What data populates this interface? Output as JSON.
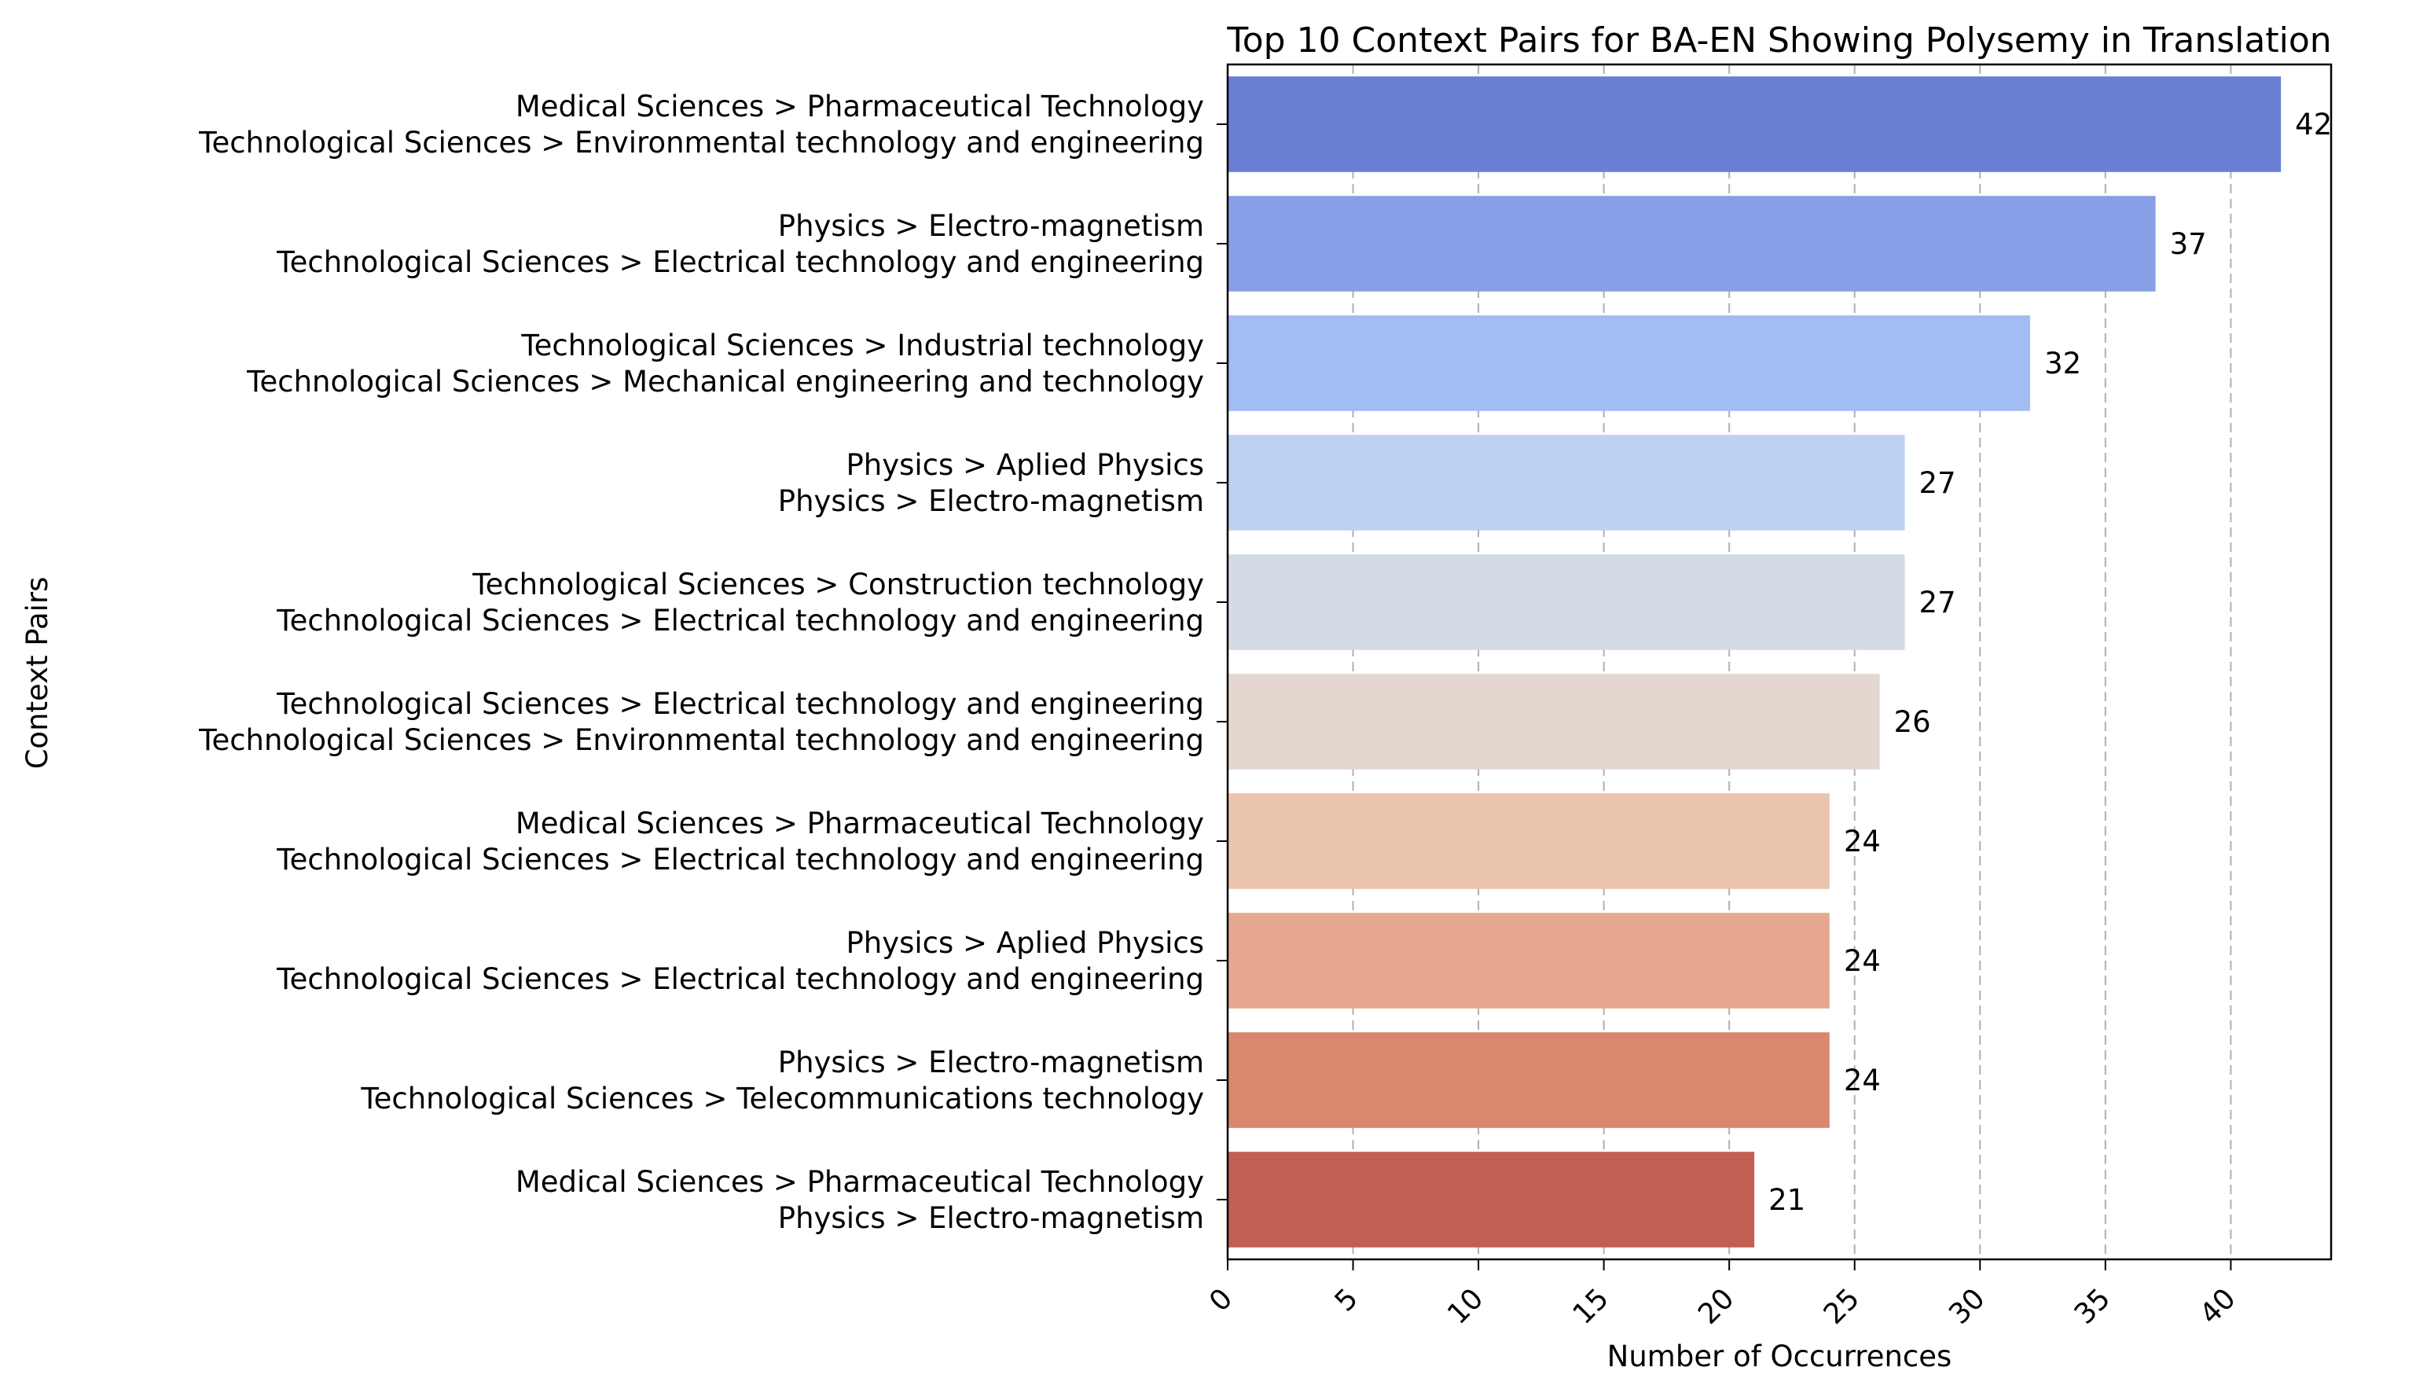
{
  "chart_data": {
    "type": "bar",
    "orientation": "horizontal",
    "title": "Top 10 Context Pairs for BA-EN Showing Polysemy in Translation",
    "xlabel": "Number of Occurrences",
    "ylabel": "Context Pairs",
    "xlim": [
      0,
      44
    ],
    "xticks": [
      "0",
      "5",
      "10",
      "15",
      "20",
      "25",
      "30",
      "35",
      "40"
    ],
    "grid": "x-dashed",
    "categories": [
      [
        "Medical Sciences > Pharmaceutical Technology",
        "Technological Sciences > Environmental technology and engineering"
      ],
      [
        "Physics > Electro-magnetism",
        "Technological Sciences > Electrical technology and engineering"
      ],
      [
        "Technological Sciences > Industrial technology",
        "Technological Sciences > Mechanical engineering and technology"
      ],
      [
        "Physics > Aplied Physics",
        "Physics > Electro-magnetism"
      ],
      [
        "Technological Sciences > Construction technology",
        "Technological Sciences > Electrical technology and engineering"
      ],
      [
        "Technological Sciences > Electrical technology and engineering",
        "Technological Sciences > Environmental technology and engineering"
      ],
      [
        "Medical Sciences > Pharmaceutical Technology",
        "Technological Sciences > Electrical technology and engineering"
      ],
      [
        "Physics > Aplied Physics",
        "Technological Sciences > Electrical technology and engineering"
      ],
      [
        "Physics > Electro-magnetism",
        "Technological Sciences > Telecommunications technology"
      ],
      [
        "Medical Sciences > Pharmaceutical Technology",
        "Physics > Electro-magnetism"
      ]
    ],
    "values": [
      42,
      37,
      32,
      27,
      27,
      26,
      24,
      24,
      24,
      21
    ],
    "colors": [
      "#6a7fd3",
      "#869fe6",
      "#a2bcf4",
      "#bdd1f2",
      "#d4dae6",
      "#e4d7cf",
      "#ebc4b0",
      "#e6a890",
      "#d9876f",
      "#c15f53"
    ]
  }
}
